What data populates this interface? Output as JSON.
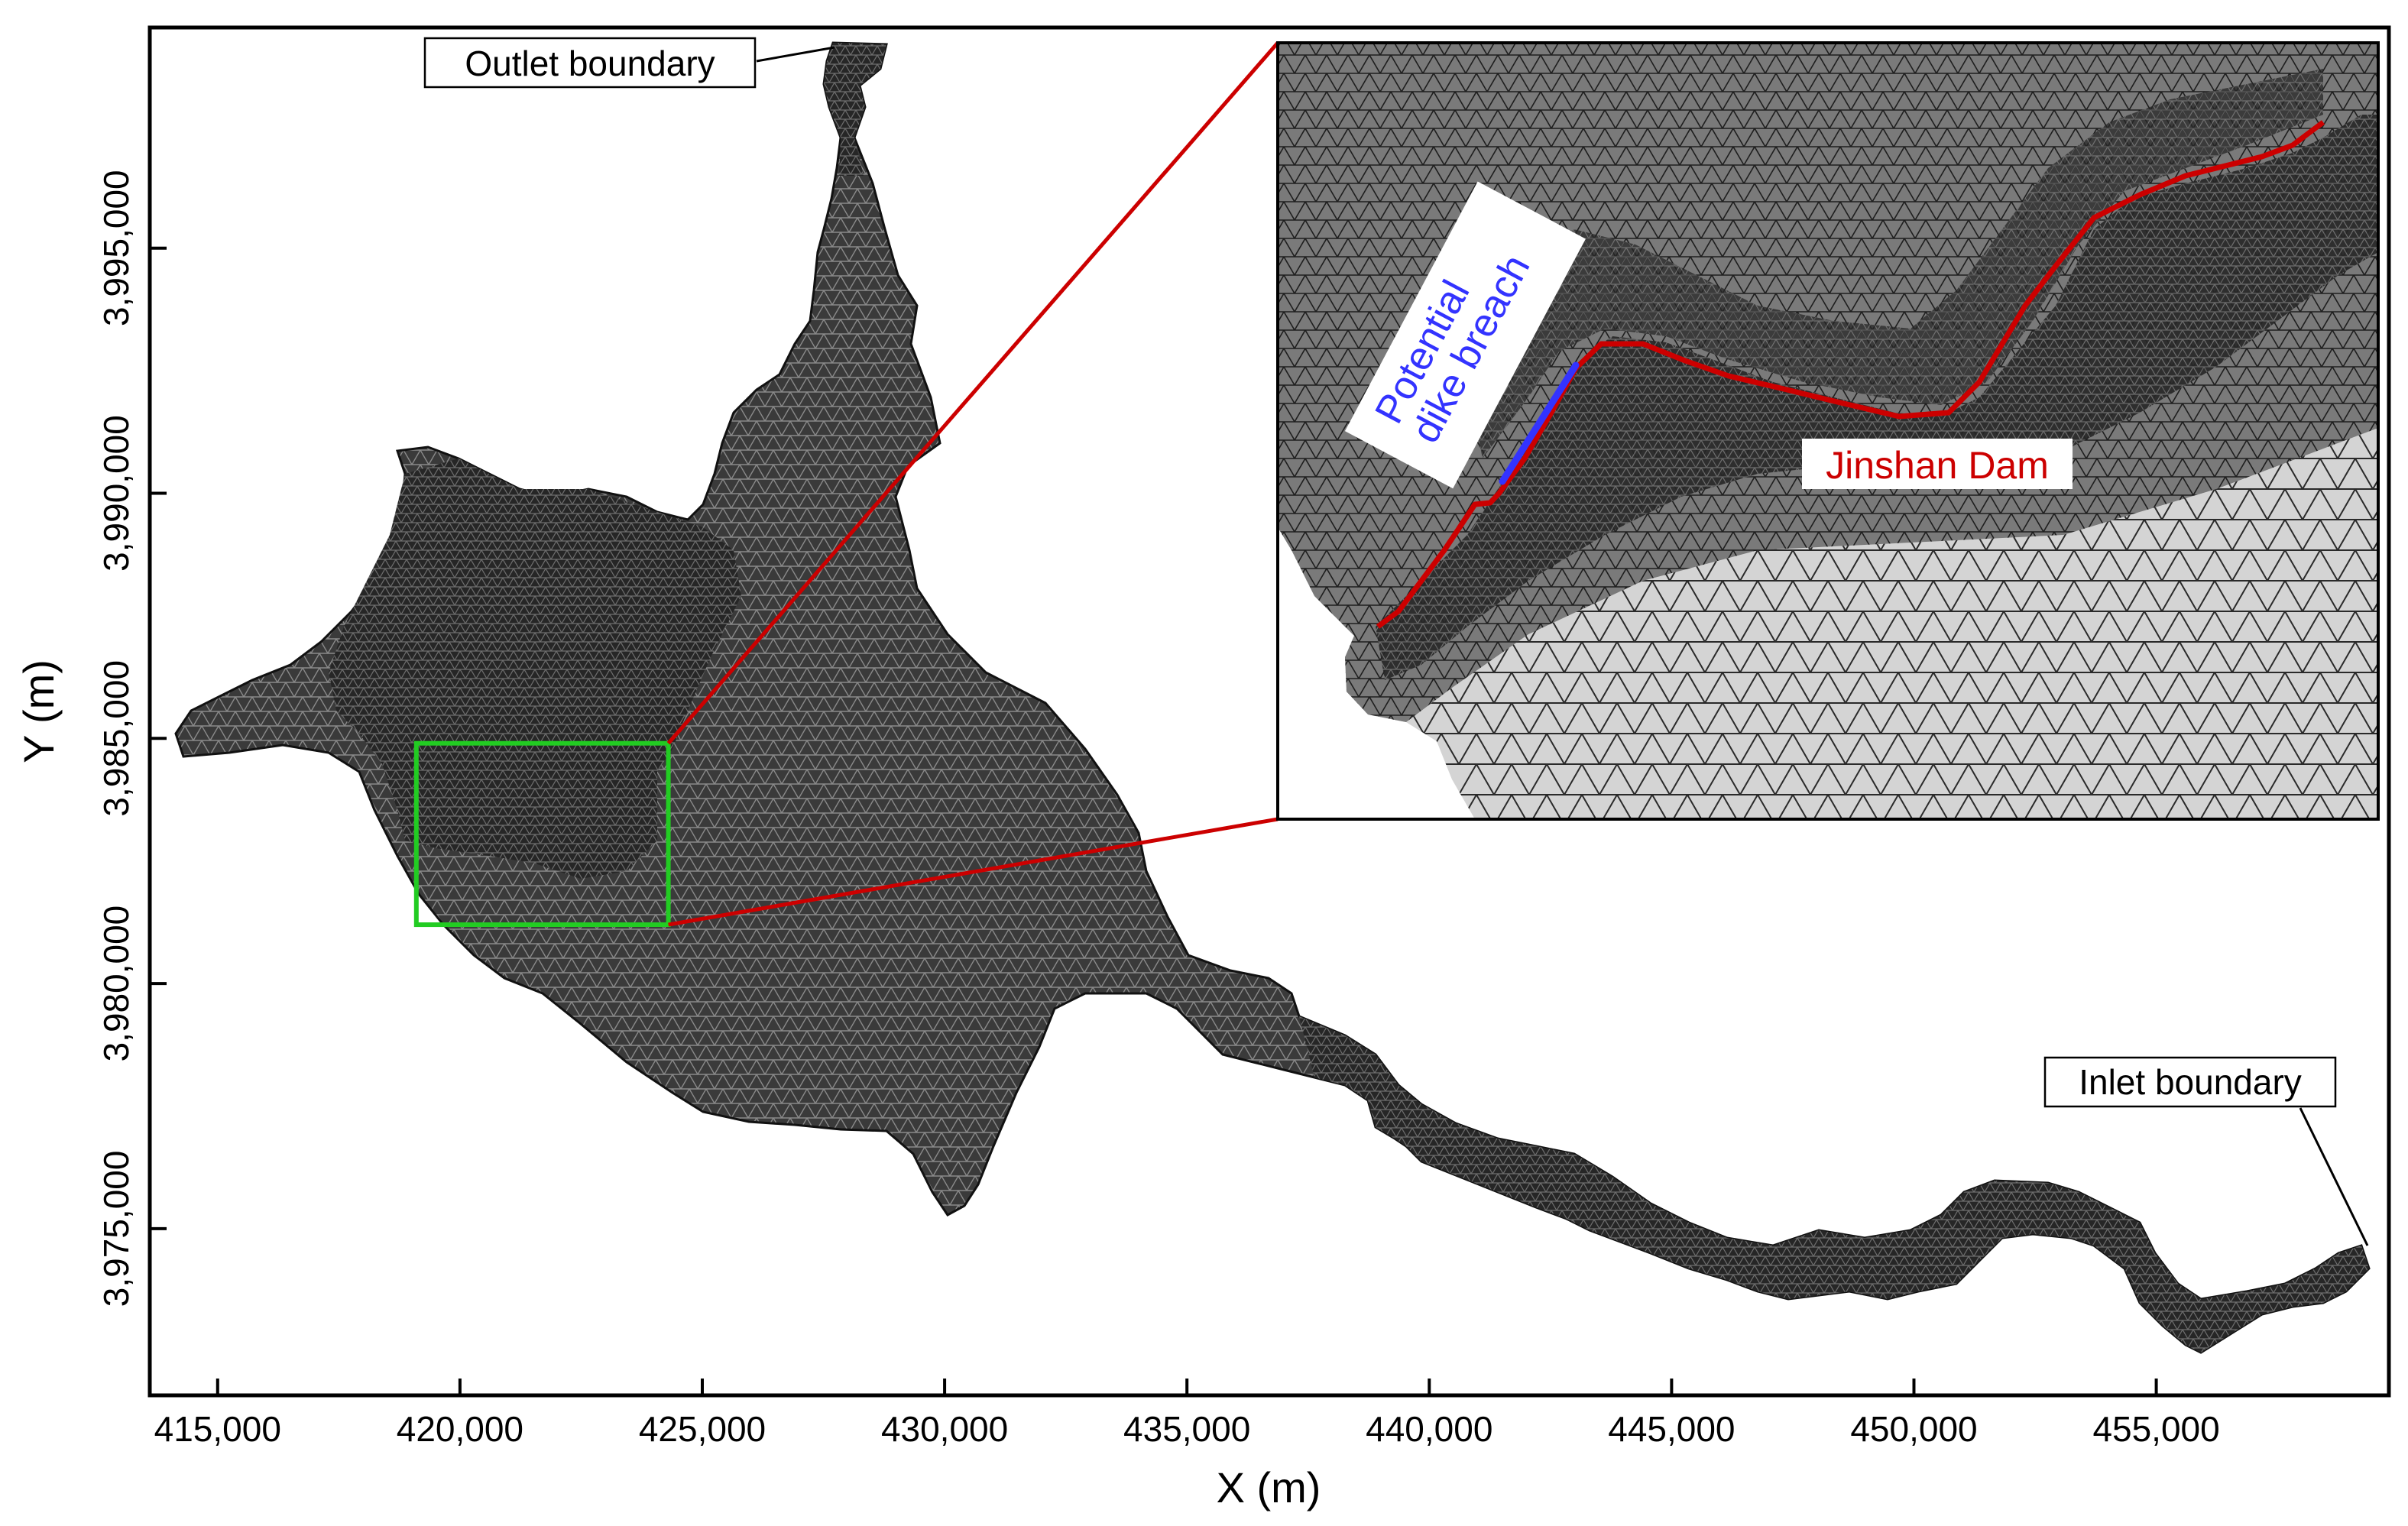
{
  "chart_data": {
    "type": "map",
    "xlabel": "X (m)",
    "ylabel": "Y (m)",
    "xlim": [
      413600,
      459800
    ],
    "ylim": [
      3971600,
      3999500
    ],
    "xticks": [
      415000,
      420000,
      425000,
      430000,
      435000,
      440000,
      445000,
      450000,
      455000
    ],
    "yticks": [
      3975000,
      3980000,
      3985000,
      3990000,
      3995000
    ],
    "xtick_labels": [
      "415,000",
      "420,000",
      "425,000",
      "430,000",
      "435,000",
      "440,000",
      "445,000",
      "450,000",
      "455,000"
    ],
    "ytick_labels": [
      "3,975,000",
      "3,980,000",
      "3,985,000",
      "3,990,000",
      "3,995,000"
    ],
    "zoom_box": {
      "x": [
        419100,
        424300
      ],
      "y": [
        3981200,
        3984900
      ]
    },
    "annotations": {
      "outlet": "Outlet boundary",
      "inlet": "Inlet boundary",
      "dam": "Jinshan Dam",
      "breach_line1": "Potential",
      "breach_line2": "dike breach"
    },
    "colors": {
      "mesh_dark": "#1a1a1a",
      "mesh_light": "#d4d4d4",
      "zoom_box": "#22cc22",
      "connector": "#cc0000",
      "dam": "#cc0000",
      "breach": "#3333ff"
    }
  }
}
